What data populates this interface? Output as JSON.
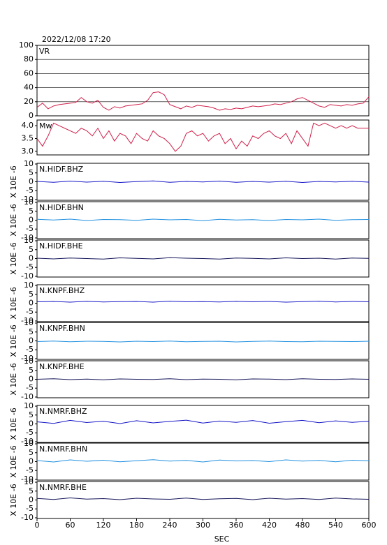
{
  "chart_data": [
    {
      "type": "line",
      "title": "2022/12/08 17:20",
      "xlim": [
        0,
        600
      ],
      "ylim": [
        0,
        100
      ],
      "yticks": [
        0,
        20,
        40,
        60,
        80,
        100
      ],
      "grid": true,
      "x": [
        0,
        10,
        20,
        30,
        40,
        50,
        60,
        70,
        80,
        90,
        100,
        110,
        120,
        130,
        140,
        150,
        160,
        170,
        180,
        190,
        200,
        210,
        220,
        230,
        240,
        250,
        260,
        270,
        280,
        290,
        300,
        310,
        320,
        330,
        340,
        350,
        360,
        370,
        380,
        390,
        400,
        410,
        420,
        430,
        440,
        450,
        460,
        470,
        480,
        490,
        500,
        510,
        520,
        530,
        540,
        550,
        560,
        570,
        580,
        590,
        600
      ],
      "series": [
        {
          "name": "VR",
          "color": "#d0204a",
          "values": [
            12,
            18,
            10,
            14,
            16,
            17,
            18,
            19,
            26,
            20,
            18,
            22,
            12,
            8,
            13,
            11,
            14,
            15,
            16,
            17,
            22,
            33,
            34,
            30,
            16,
            13,
            10,
            14,
            12,
            15,
            14,
            13,
            11,
            8,
            10,
            9,
            11,
            10,
            12,
            14,
            13,
            14,
            15,
            17,
            16,
            18,
            20,
            24,
            26,
            22,
            18,
            14,
            12,
            16,
            15,
            14,
            16,
            15,
            17,
            18,
            27
          ]
        }
      ]
    },
    {
      "type": "line",
      "xlim": [
        0,
        600
      ],
      "ylim": [
        2.86,
        4.22
      ],
      "yticks": [
        {
          "value": 3,
          "label": "3.0"
        },
        {
          "value": 3.5,
          "label": "3.5"
        },
        {
          "value": 4,
          "label": "4.0"
        }
      ],
      "grid": false,
      "x": [
        0,
        10,
        20,
        30,
        40,
        50,
        60,
        70,
        80,
        90,
        100,
        110,
        120,
        130,
        140,
        150,
        160,
        170,
        180,
        190,
        200,
        210,
        220,
        230,
        240,
        250,
        260,
        270,
        280,
        290,
        300,
        310,
        320,
        330,
        340,
        350,
        360,
        370,
        380,
        390,
        400,
        410,
        420,
        430,
        440,
        450,
        460,
        470,
        480,
        490,
        500,
        510,
        520,
        530,
        540,
        550,
        560,
        570,
        580,
        590,
        600
      ],
      "series": [
        {
          "name": "Mw",
          "color": "#d0204a",
          "values": [
            3.5,
            3.2,
            3.6,
            4.1,
            4.0,
            3.9,
            3.8,
            3.7,
            3.9,
            3.8,
            3.6,
            3.9,
            3.5,
            3.8,
            3.4,
            3.7,
            3.6,
            3.3,
            3.7,
            3.5,
            3.4,
            3.8,
            3.6,
            3.5,
            3.3,
            3.0,
            3.2,
            3.7,
            3.8,
            3.6,
            3.7,
            3.4,
            3.6,
            3.7,
            3.3,
            3.5,
            3.1,
            3.4,
            3.2,
            3.6,
            3.5,
            3.7,
            3.8,
            3.6,
            3.5,
            3.7,
            3.3,
            3.8,
            3.5,
            3.2,
            4.1,
            4.0,
            4.1,
            4.0,
            3.9,
            4.0,
            3.9,
            4.0,
            3.9,
            3.9,
            3.9
          ]
        }
      ]
    },
    {
      "type": "line",
      "ylabel": "X 10E -6",
      "xlim": [
        0,
        600
      ],
      "ylim": [
        -10.4,
        10.4
      ],
      "yticks": [
        -10,
        -5,
        0,
        5,
        10
      ],
      "grid": false,
      "x": [
        0,
        30,
        60,
        90,
        120,
        150,
        180,
        210,
        240,
        270,
        300,
        330,
        360,
        390,
        420,
        450,
        480,
        510,
        540,
        570,
        600
      ],
      "series": [
        {
          "name": "N.HIDF.BHZ",
          "color": "#1414c8",
          "values": [
            0.2,
            -0.3,
            0.4,
            -0.2,
            0.3,
            -0.4,
            0.1,
            0.5,
            -0.3,
            0.2,
            -0.1,
            0.4,
            -0.3,
            0.2,
            -0.2,
            0.3,
            -0.4,
            0.2,
            -0.1,
            0.3,
            -0.2
          ]
        }
      ]
    },
    {
      "type": "line",
      "ylabel": "X 10E -6",
      "xlim": [
        0,
        600
      ],
      "ylim": [
        -10.4,
        10.4
      ],
      "yticks": [
        -10,
        -5,
        0,
        5,
        10
      ],
      "grid": false,
      "x": [
        0,
        30,
        60,
        90,
        120,
        150,
        180,
        210,
        240,
        270,
        300,
        330,
        360,
        390,
        420,
        450,
        480,
        510,
        540,
        570,
        600
      ],
      "series": [
        {
          "name": "N.HIDF.BHN",
          "color": "#2090e0",
          "values": [
            0.5,
            0.1,
            0.6,
            -0.2,
            0.4,
            0.3,
            -0.1,
            0.6,
            0.2,
            0.4,
            -0.3,
            0.5,
            0.1,
            0.3,
            -0.2,
            0.4,
            0.2,
            0.6,
            -0.1,
            0.3,
            0.4
          ]
        }
      ]
    },
    {
      "type": "line",
      "ylabel": "X 10E -6",
      "xlim": [
        0,
        600
      ],
      "ylim": [
        -10.4,
        10.4
      ],
      "yticks": [
        -10,
        -5,
        0,
        5,
        10
      ],
      "grid": false,
      "x": [
        0,
        30,
        60,
        90,
        120,
        150,
        180,
        210,
        240,
        270,
        300,
        330,
        360,
        390,
        420,
        450,
        480,
        510,
        540,
        570,
        600
      ],
      "series": [
        {
          "name": "N.HIDF.BHE",
          "color": "#14145a",
          "values": [
            0.2,
            -0.2,
            0.3,
            0.0,
            -0.3,
            0.4,
            0.1,
            -0.2,
            0.5,
            0.2,
            0.0,
            -0.3,
            0.3,
            0.1,
            -0.2,
            0.4,
            0.0,
            0.2,
            -0.3,
            0.3,
            0.1
          ]
        }
      ]
    },
    {
      "type": "line",
      "ylabel": "X 10E -6",
      "xlim": [
        0,
        600
      ],
      "ylim": [
        -10.4,
        10.4
      ],
      "yticks": [
        -10,
        -5,
        0,
        5,
        10
      ],
      "grid": false,
      "x": [
        0,
        30,
        60,
        90,
        120,
        150,
        180,
        210,
        240,
        270,
        300,
        330,
        360,
        390,
        420,
        450,
        480,
        510,
        540,
        570,
        600
      ],
      "series": [
        {
          "name": "N.KNPF.BHZ",
          "color": "#1414c8",
          "values": [
            0.8,
            1.0,
            0.6,
            1.1,
            0.7,
            0.9,
            1.0,
            0.6,
            1.2,
            0.8,
            0.9,
            0.7,
            1.1,
            0.8,
            1.0,
            0.6,
            0.9,
            1.2,
            0.7,
            1.0,
            0.8
          ]
        }
      ]
    },
    {
      "type": "line",
      "ylabel": "X 10E -6",
      "xlim": [
        0,
        600
      ],
      "ylim": [
        -10.4,
        10.4
      ],
      "yticks": [
        -10,
        -5,
        0,
        5,
        10
      ],
      "grid": false,
      "x": [
        0,
        30,
        60,
        90,
        120,
        150,
        180,
        210,
        240,
        270,
        300,
        330,
        360,
        390,
        420,
        450,
        480,
        510,
        540,
        570,
        600
      ],
      "series": [
        {
          "name": "N.KNPF.BHN",
          "color": "#2090e0",
          "values": [
            -0.4,
            -0.1,
            -0.5,
            -0.2,
            -0.3,
            -0.6,
            -0.2,
            -0.4,
            -0.1,
            -0.5,
            -0.3,
            -0.2,
            -0.6,
            -0.3,
            -0.1,
            -0.4,
            -0.5,
            -0.2,
            -0.3,
            -0.4,
            -0.2
          ]
        }
      ]
    },
    {
      "type": "line",
      "ylabel": "X 10E -6",
      "xlim": [
        0,
        600
      ],
      "ylim": [
        -10.4,
        10.4
      ],
      "yticks": [
        -10,
        -5,
        0,
        5,
        10
      ],
      "grid": false,
      "x": [
        0,
        30,
        60,
        90,
        120,
        150,
        180,
        210,
        240,
        270,
        300,
        330,
        360,
        390,
        420,
        450,
        480,
        510,
        540,
        570,
        600
      ],
      "series": [
        {
          "name": "N.KNPF.BHE",
          "color": "#14145a",
          "values": [
            0.0,
            0.3,
            -0.2,
            0.1,
            -0.3,
            0.2,
            0.0,
            -0.1,
            0.3,
            -0.2,
            0.1,
            0.0,
            -0.3,
            0.2,
            0.1,
            -0.2,
            0.3,
            0.0,
            -0.1,
            0.2,
            0.0
          ]
        }
      ]
    },
    {
      "type": "line",
      "ylabel": "X 10E -6",
      "xlim": [
        0,
        600
      ],
      "ylim": [
        -10.4,
        10.4
      ],
      "yticks": [
        -10,
        -5,
        0,
        5,
        10
      ],
      "grid": false,
      "x": [
        0,
        30,
        60,
        90,
        120,
        150,
        180,
        210,
        240,
        270,
        300,
        330,
        360,
        390,
        420,
        450,
        480,
        510,
        540,
        570,
        600
      ],
      "series": [
        {
          "name": "N.NMRF.BHZ",
          "color": "#1414c8",
          "values": [
            1.2,
            0.3,
            2.0,
            0.8,
            1.5,
            0.2,
            1.8,
            0.6,
            1.4,
            2.1,
            0.5,
            1.6,
            0.9,
            1.9,
            0.4,
            1.3,
            2.0,
            0.7,
            1.7,
            0.9,
            1.5
          ]
        }
      ]
    },
    {
      "type": "line",
      "ylabel": "X 10E -6",
      "xlim": [
        0,
        600
      ],
      "ylim": [
        -10.4,
        10.4
      ],
      "yticks": [
        -10,
        -5,
        0,
        5,
        10
      ],
      "grid": false,
      "x": [
        0,
        30,
        60,
        90,
        120,
        150,
        180,
        210,
        240,
        270,
        300,
        330,
        360,
        390,
        420,
        450,
        480,
        510,
        540,
        570,
        600
      ],
      "series": [
        {
          "name": "N.NMRF.BHN",
          "color": "#2090e0",
          "values": [
            0.6,
            -0.2,
            1.0,
            0.2,
            0.8,
            -0.1,
            0.5,
            1.1,
            0.3,
            0.7,
            -0.2,
            0.9,
            0.4,
            0.6,
            0.0,
            1.0,
            0.3,
            0.7,
            -0.1,
            0.8,
            0.5
          ]
        }
      ]
    },
    {
      "type": "line",
      "ylabel": "X 10E -6",
      "xlabel": "SEC",
      "xlim": [
        0,
        600
      ],
      "ylim": [
        -10.4,
        10.4
      ],
      "yticks": [
        -10,
        -5,
        0,
        5,
        10
      ],
      "xticks": [
        0,
        60,
        120,
        180,
        240,
        300,
        360,
        420,
        480,
        540,
        600
      ],
      "grid": false,
      "x": [
        0,
        30,
        60,
        90,
        120,
        150,
        180,
        210,
        240,
        270,
        300,
        330,
        360,
        390,
        420,
        450,
        480,
        510,
        540,
        570,
        600
      ],
      "series": [
        {
          "name": "N.NMRF.BHE",
          "color": "#14145a",
          "values": [
            0.9,
            0.3,
            1.2,
            0.5,
            0.8,
            0.2,
            1.0,
            0.6,
            0.4,
            1.1,
            0.3,
            0.7,
            0.9,
            0.2,
            1.0,
            0.5,
            0.8,
            0.3,
            1.1,
            0.6,
            0.4
          ]
        }
      ]
    }
  ]
}
